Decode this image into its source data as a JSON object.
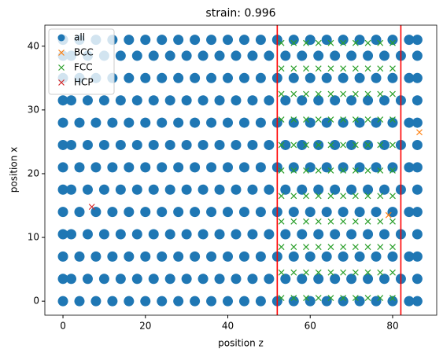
{
  "chart_data": {
    "type": "scatter",
    "title": "strain: 0.996",
    "x_label": "position z",
    "y_label": "position x",
    "xlim": [
      -4.4,
      90.7
    ],
    "ylim": [
      -2.2,
      43.3
    ],
    "xticks": [
      0,
      20,
      40,
      60,
      80
    ],
    "yticks": [
      0,
      10,
      20,
      30,
      40
    ],
    "grid": false,
    "legend": "upper left",
    "vlines": {
      "color": "#ff0000",
      "x": [
        52,
        82
      ]
    },
    "series": [
      {
        "name": "all",
        "color": "#1f77b4",
        "marker": "o",
        "x": [
          0,
          4,
          8,
          12,
          16,
          20,
          24,
          28,
          32,
          36,
          40,
          44,
          48,
          52,
          56,
          60,
          64,
          68,
          72,
          76,
          80,
          84,
          86,
          0,
          2,
          6,
          10,
          14,
          18,
          22,
          26,
          30,
          34,
          38,
          42,
          46,
          50,
          54,
          58,
          62,
          66,
          70,
          74,
          78,
          82,
          86,
          0,
          4,
          8,
          12,
          16,
          20,
          24,
          28,
          32,
          36,
          40,
          44,
          48,
          52,
          56,
          60,
          64,
          68,
          72,
          76,
          80,
          84,
          86,
          0,
          2,
          6,
          10,
          14,
          18,
          22,
          26,
          30,
          34,
          38,
          42,
          46,
          50,
          54,
          58,
          62,
          66,
          70,
          74,
          78,
          82,
          86,
          0,
          4,
          8,
          12,
          16,
          20,
          24,
          28,
          32,
          36,
          40,
          44,
          48,
          52,
          56,
          60,
          64,
          68,
          72,
          76,
          80,
          84,
          86,
          0,
          2,
          6,
          10,
          14,
          18,
          22,
          26,
          30,
          34,
          38,
          42,
          46,
          50,
          54,
          58,
          62,
          66,
          70,
          74,
          78,
          82,
          86,
          0,
          4,
          8,
          12,
          16,
          20,
          24,
          28,
          32,
          36,
          40,
          44,
          48,
          52,
          56,
          60,
          64,
          68,
          72,
          76,
          80,
          84,
          86,
          0,
          2,
          6,
          10,
          14,
          18,
          22,
          26,
          30,
          34,
          38,
          42,
          46,
          50,
          54,
          58,
          62,
          66,
          70,
          74,
          78,
          82,
          86,
          0,
          4,
          8,
          12,
          16,
          20,
          24,
          28,
          32,
          36,
          40,
          44,
          48,
          52,
          56,
          60,
          64,
          68,
          72,
          76,
          80,
          84,
          86,
          0,
          2,
          6,
          10,
          14,
          18,
          22,
          26,
          30,
          34,
          38,
          42,
          46,
          50,
          54,
          58,
          62,
          66,
          70,
          74,
          78,
          82,
          86,
          0,
          4,
          8,
          12,
          16,
          20,
          24,
          28,
          32,
          36,
          40,
          44,
          48,
          52,
          56,
          60,
          64,
          68,
          72,
          76,
          80,
          84,
          86,
          0,
          2,
          6,
          10,
          14,
          18,
          22,
          26,
          30,
          34,
          38,
          42,
          46,
          50,
          54,
          58,
          62,
          66,
          70,
          74,
          78,
          82,
          86,
          0,
          4,
          8,
          12,
          16,
          20,
          24,
          28,
          32,
          36,
          40,
          44,
          48,
          52,
          56,
          60,
          64,
          68,
          72,
          76,
          80,
          84,
          86
        ],
        "values": [
          0,
          0,
          0,
          0,
          0,
          0,
          0,
          0,
          0,
          0,
          0,
          0,
          0,
          0,
          0,
          0,
          0,
          0,
          0,
          0,
          0,
          0,
          0,
          3.5,
          3.5,
          3.5,
          3.5,
          3.5,
          3.5,
          3.5,
          3.5,
          3.5,
          3.5,
          3.5,
          3.5,
          3.5,
          3.5,
          3.5,
          3.5,
          3.5,
          3.5,
          3.5,
          3.5,
          3.5,
          3.5,
          3.5,
          7,
          7,
          7,
          7,
          7,
          7,
          7,
          7,
          7,
          7,
          7,
          7,
          7,
          7,
          7,
          7,
          7,
          7,
          7,
          7,
          7,
          7,
          7,
          10.5,
          10.5,
          10.5,
          10.5,
          10.5,
          10.5,
          10.5,
          10.5,
          10.5,
          10.5,
          10.5,
          10.5,
          10.5,
          10.5,
          10.5,
          10.5,
          10.5,
          10.5,
          10.5,
          10.5,
          10.5,
          10.5,
          10.5,
          14,
          14,
          14,
          14,
          14,
          14,
          14,
          14,
          14,
          14,
          14,
          14,
          14,
          14,
          14,
          14,
          14,
          14,
          14,
          14,
          14,
          14,
          14,
          17.5,
          17.5,
          17.5,
          17.5,
          17.5,
          17.5,
          17.5,
          17.5,
          17.5,
          17.5,
          17.5,
          17.5,
          17.5,
          17.5,
          17.5,
          17.5,
          17.5,
          17.5,
          17.5,
          17.5,
          17.5,
          17.5,
          17.5,
          21,
          21,
          21,
          21,
          21,
          21,
          21,
          21,
          21,
          21,
          21,
          21,
          21,
          21,
          21,
          21,
          21,
          21,
          21,
          21,
          21,
          21,
          21,
          24.5,
          24.5,
          24.5,
          24.5,
          24.5,
          24.5,
          24.5,
          24.5,
          24.5,
          24.5,
          24.5,
          24.5,
          24.5,
          24.5,
          24.5,
          24.5,
          24.5,
          24.5,
          24.5,
          24.5,
          24.5,
          24.5,
          24.5,
          28,
          28,
          28,
          28,
          28,
          28,
          28,
          28,
          28,
          28,
          28,
          28,
          28,
          28,
          28,
          28,
          28,
          28,
          28,
          28,
          28,
          28,
          28,
          31.5,
          31.5,
          31.5,
          31.5,
          31.5,
          31.5,
          31.5,
          31.5,
          31.5,
          31.5,
          31.5,
          31.5,
          31.5,
          31.5,
          31.5,
          31.5,
          31.5,
          31.5,
          31.5,
          31.5,
          31.5,
          31.5,
          31.5,
          35,
          35,
          35,
          35,
          35,
          35,
          35,
          35,
          35,
          35,
          35,
          35,
          35,
          35,
          35,
          35,
          35,
          35,
          35,
          35,
          35,
          35,
          35,
          38.5,
          38.5,
          38.5,
          38.5,
          38.5,
          38.5,
          38.5,
          38.5,
          38.5,
          38.5,
          38.5,
          38.5,
          38.5,
          38.5,
          38.5,
          38.5,
          38.5,
          38.5,
          38.5,
          38.5,
          38.5,
          38.5,
          38.5,
          41,
          41,
          41,
          41,
          41,
          41,
          41,
          41,
          41,
          41,
          41,
          41,
          41,
          41,
          41,
          41,
          41,
          41,
          41,
          41,
          41,
          41,
          41
        ]
      },
      {
        "name": "BCC",
        "color": "#ff7f0e",
        "marker": "x",
        "x": [
          86.5,
          79
        ],
        "values": [
          26.5,
          13.5
        ]
      },
      {
        "name": "FCC",
        "color": "#2ca02c",
        "marker": "x",
        "x": [
          53,
          56,
          59,
          62,
          65,
          68,
          71,
          74,
          77,
          80,
          53,
          56,
          59,
          62,
          65,
          68,
          71,
          74,
          77,
          80,
          53,
          56,
          59,
          62,
          65,
          68,
          71,
          74,
          77,
          80,
          53,
          56,
          59,
          62,
          65,
          68,
          71,
          74,
          77,
          80,
          53,
          56,
          59,
          62,
          65,
          68,
          71,
          74,
          77,
          80,
          53,
          56,
          59,
          62,
          65,
          68,
          71,
          74,
          77,
          80,
          53,
          56,
          59,
          62,
          65,
          68,
          71,
          74,
          77,
          80,
          53,
          56,
          59,
          62,
          65,
          68,
          71,
          74,
          77,
          80,
          53,
          56,
          59,
          62,
          65,
          68,
          71,
          74,
          77,
          80,
          53,
          56,
          59,
          62,
          65,
          68,
          71,
          74,
          77,
          80,
          53,
          56,
          59,
          62,
          65,
          68,
          71,
          74,
          77,
          80
        ],
        "values": [
          0.5,
          0.5,
          0.5,
          0.5,
          0.5,
          0.5,
          0.5,
          0.5,
          0.5,
          0.5,
          4.5,
          4.5,
          4.5,
          4.5,
          4.5,
          4.5,
          4.5,
          4.5,
          4.5,
          4.5,
          8.5,
          8.5,
          8.5,
          8.5,
          8.5,
          8.5,
          8.5,
          8.5,
          8.5,
          8.5,
          12.5,
          12.5,
          12.5,
          12.5,
          12.5,
          12.5,
          12.5,
          12.5,
          12.5,
          12.5,
          16.5,
          16.5,
          16.5,
          16.5,
          16.5,
          16.5,
          16.5,
          16.5,
          16.5,
          16.5,
          20.5,
          20.5,
          20.5,
          20.5,
          20.5,
          20.5,
          20.5,
          20.5,
          20.5,
          20.5,
          24.5,
          24.5,
          24.5,
          24.5,
          24.5,
          24.5,
          24.5,
          24.5,
          24.5,
          24.5,
          28.5,
          28.5,
          28.5,
          28.5,
          28.5,
          28.5,
          28.5,
          28.5,
          28.5,
          28.5,
          32.5,
          32.5,
          32.5,
          32.5,
          32.5,
          32.5,
          32.5,
          32.5,
          32.5,
          32.5,
          36.5,
          36.5,
          36.5,
          36.5,
          36.5,
          36.5,
          36.5,
          36.5,
          36.5,
          36.5,
          40.5,
          40.5,
          40.5,
          40.5,
          40.5,
          40.5,
          40.5,
          40.5,
          40.5,
          40.5
        ]
      },
      {
        "name": "HCP",
        "color": "#d62728",
        "marker": "x",
        "x": [
          7
        ],
        "values": [
          14.8
        ]
      }
    ]
  }
}
